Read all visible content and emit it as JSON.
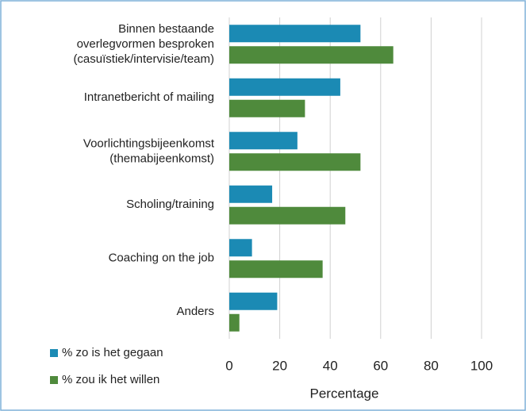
{
  "chart_data": {
    "type": "bar",
    "orientation": "horizontal",
    "categories": [
      "Binnen bestaande\noverlegvormen besproken\n(casuïstiek/intervisie/team)",
      "Intranetbericht of mailing",
      "Voorlichtingsbijeenkomst\n(themabijeenkomst)",
      "Scholing/training",
      "Coaching on the job",
      "Anders"
    ],
    "series": [
      {
        "name": "% zo is het gegaan",
        "color": "#1b8ab4",
        "values": [
          52,
          44,
          27,
          17,
          9,
          19
        ]
      },
      {
        "name": "% zou ik het willen",
        "color": "#4f8a3c",
        "values": [
          65,
          30,
          52,
          46,
          37,
          4
        ]
      }
    ],
    "x_label": "Percentage",
    "xlim": [
      0,
      100
    ],
    "xticks": [
      0,
      20,
      40,
      60,
      80,
      100
    ],
    "grid": true,
    "legend": "bottom-left"
  }
}
